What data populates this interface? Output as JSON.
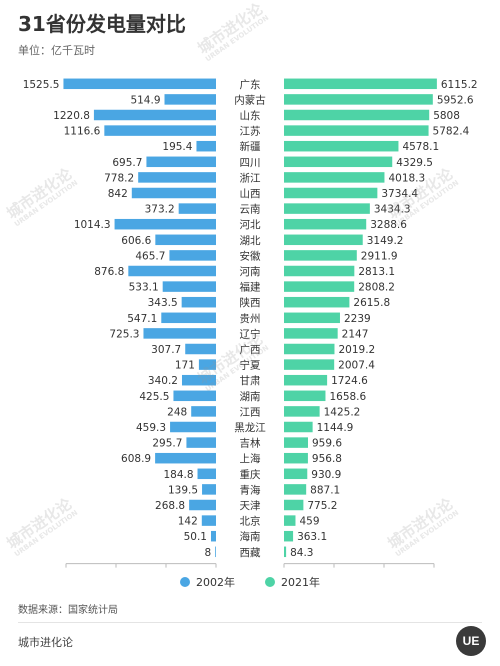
{
  "header": {
    "title": "31省份发电量对比",
    "unit": "单位：亿千瓦时"
  },
  "chart_data": {
    "type": "bar",
    "categories": [
      "广东",
      "内蒙古",
      "山东",
      "江苏",
      "新疆",
      "四川",
      "浙江",
      "山西",
      "云南",
      "河北",
      "湖北",
      "安徽",
      "河南",
      "福建",
      "陕西",
      "贵州",
      "辽宁",
      "广西",
      "宁夏",
      "甘肃",
      "湖南",
      "江西",
      "黑龙江",
      "吉林",
      "上海",
      "重庆",
      "青海",
      "天津",
      "北京",
      "海南",
      "西藏"
    ],
    "series": [
      {
        "name": "2002年",
        "values": [
          1525.5,
          514.9,
          1220.8,
          1116.6,
          195.4,
          695.7,
          778.2,
          842,
          373.2,
          1014.3,
          606.6,
          465.7,
          876.8,
          533.1,
          343.5,
          547.1,
          725.3,
          307.7,
          171,
          340.2,
          425.5,
          248,
          459.3,
          295.7,
          608.9,
          184.8,
          139.5,
          268.8,
          142,
          50.1,
          8
        ],
        "color": "#4aa6e3"
      },
      {
        "name": "2021年",
        "values": [
          6115.2,
          5952.6,
          5808,
          5782.4,
          4578.1,
          4329.5,
          4018.3,
          3734.4,
          3434.3,
          3288.6,
          3149.2,
          2911.9,
          2813.1,
          2808.2,
          2615.8,
          2239,
          2147,
          2019.2,
          2007.4,
          1724.6,
          1658.6,
          1425.2,
          1144.9,
          959.6,
          956.8,
          930.9,
          887.1,
          775.2,
          459,
          363.1,
          84.3
        ],
        "color": "#4ed3a6"
      }
    ],
    "left_axis": {
      "ticks": [
        1500,
        1000,
        500,
        0
      ],
      "max": 1500
    },
    "right_axis": {
      "ticks": [
        0,
        2000,
        4000,
        6000
      ],
      "max": 6000
    },
    "layout": "butterfly"
  },
  "legend": {
    "items": [
      {
        "label": "2002年",
        "color": "#4aa6e3"
      },
      {
        "label": "2021年",
        "color": "#4ed3a6"
      }
    ]
  },
  "footer": {
    "source": "数据来源：国家统计局",
    "brand": "城市进化论",
    "logo_text": "UE"
  },
  "watermark": {
    "cn": "城市进化论",
    "en": "URBAN EVOLUTION"
  }
}
